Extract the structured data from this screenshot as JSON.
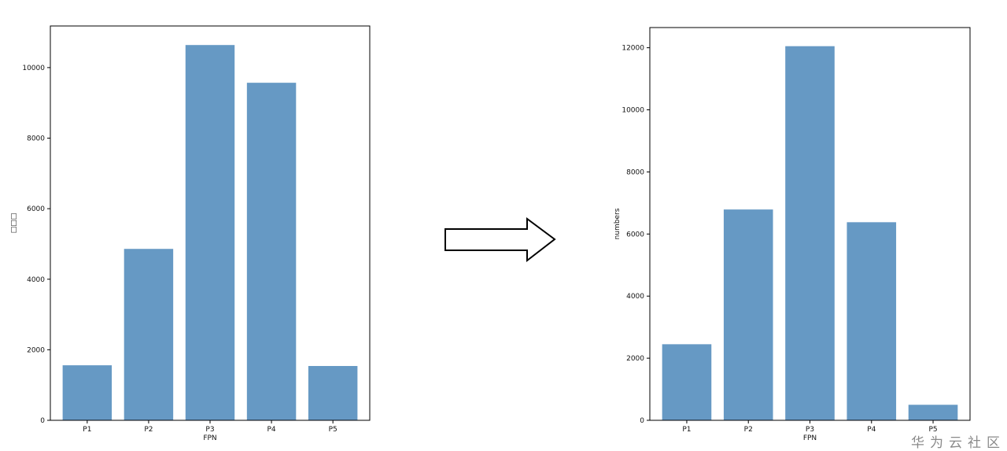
{
  "chart_data": [
    {
      "type": "bar",
      "categories": [
        "P1",
        "P2",
        "P3",
        "P4",
        "P5"
      ],
      "values": [
        1560,
        4860,
        10640,
        9570,
        1540
      ],
      "xlabel": "FPN",
      "ylabel": "□□□",
      "ylim": [
        0,
        11180
      ],
      "yticks": [
        0,
        2000,
        4000,
        6000,
        8000,
        10000
      ],
      "grid": false,
      "bar_color": "#6699c4"
    },
    {
      "type": "bar",
      "categories": [
        "P1",
        "P2",
        "P3",
        "P4",
        "P5"
      ],
      "values": [
        2450,
        6790,
        12050,
        6380,
        500
      ],
      "xlabel": "FPN",
      "ylabel": "numbers",
      "ylim": [
        0,
        12650
      ],
      "yticks": [
        0,
        2000,
        4000,
        6000,
        8000,
        10000,
        12000
      ],
      "grid": false,
      "bar_color": "#6699c4"
    }
  ],
  "arrow": {
    "direction": "right",
    "icon": "arrow-right-icon"
  },
  "watermark": "华为云社区"
}
